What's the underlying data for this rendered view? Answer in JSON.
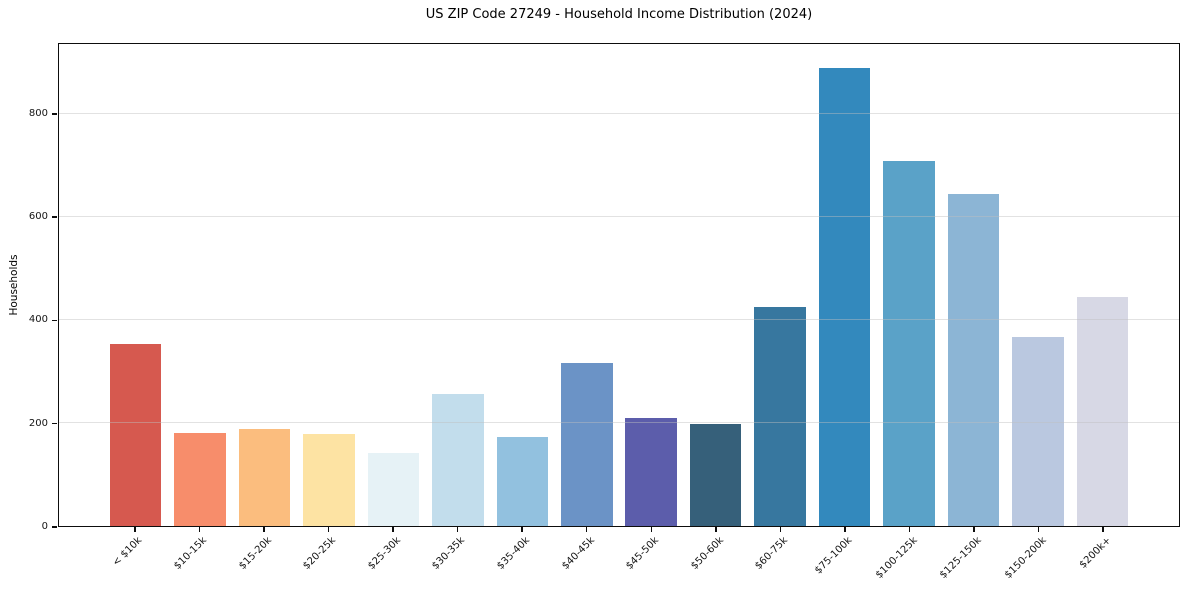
{
  "chart_data": {
    "type": "bar",
    "title": "US ZIP Code 27249 - Household Income Distribution (2024)",
    "xlabel": "",
    "ylabel": "Households",
    "categories": [
      "< $10k",
      "$10-15k",
      "$15-20k",
      "$20-25k",
      "$25-30k",
      "$30-35k",
      "$35-40k",
      "$40-45k",
      "$45-50k",
      "$50-60k",
      "$60-75k",
      "$75-100k",
      "$100-125k",
      "$125-150k",
      "$150-200k",
      "$200k+"
    ],
    "values": [
      353,
      180,
      189,
      178,
      142,
      256,
      173,
      316,
      210,
      198,
      425,
      890,
      710,
      646,
      368,
      446
    ],
    "bar_colors": [
      "#d6594f",
      "#f78d6b",
      "#fbbd7e",
      "#fde3a3",
      "#e6f2f6",
      "#c2ddec",
      "#92c1df",
      "#6b93c6",
      "#5c5dab",
      "#36607a",
      "#37779f",
      "#3389bd",
      "#5aa2c8",
      "#8cb5d5",
      "#bac8e0",
      "#d7d8e5"
    ],
    "yticks": [
      0,
      200,
      400,
      600,
      800
    ],
    "ylim": [
      0,
      937
    ],
    "grid": "horizontal",
    "legend": "none",
    "background_color": "#ffffff",
    "grid_color": "#e3e3e3",
    "spine_color": "#0d0d0d",
    "tick_label_color": "#151515"
  }
}
